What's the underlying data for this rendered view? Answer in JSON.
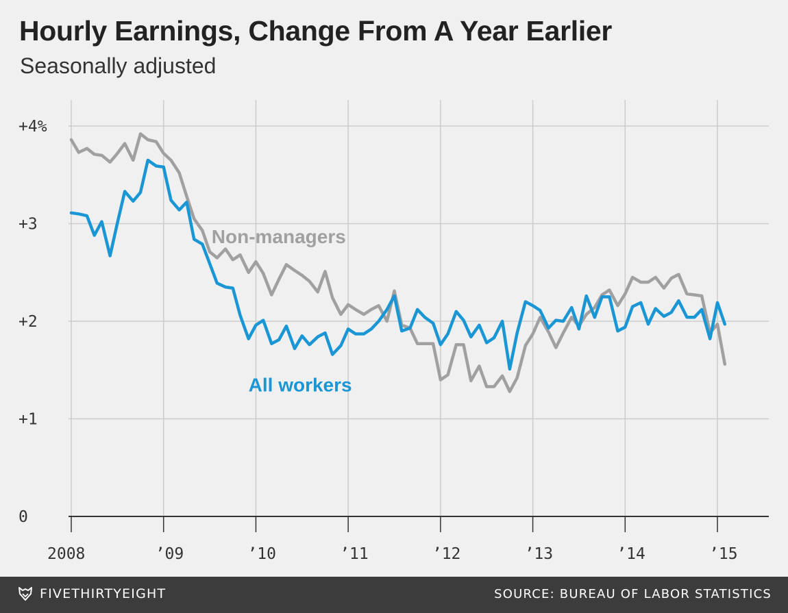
{
  "header": {
    "title": "Hourly Earnings, Change From A Year Earlier",
    "subtitle": "Seasonally adjusted"
  },
  "footer": {
    "brand": "FIVETHIRTYEIGHT",
    "source": "SOURCE: BUREAU OF LABOR STATISTICS"
  },
  "colors": {
    "background": "#f0f0f0",
    "grid": "#cccccc",
    "axis": "#333333",
    "all_workers": "#1a96d4",
    "non_managers": "#a0a0a0",
    "footer": "#3c3c3c"
  },
  "chart_data": {
    "type": "line",
    "title": "Hourly Earnings, Change From A Year Earlier",
    "subtitle": "Seasonally adjusted",
    "xlabel": "",
    "ylabel": "",
    "x_range": [
      2008.0,
      2015.5
    ],
    "ylim": [
      0,
      4.2
    ],
    "grid": true,
    "x_ticks": [
      {
        "value": 2008,
        "label": "2008"
      },
      {
        "value": 2009,
        "label": "’09"
      },
      {
        "value": 2010,
        "label": "’10"
      },
      {
        "value": 2011,
        "label": "’11"
      },
      {
        "value": 2012,
        "label": "’12"
      },
      {
        "value": 2013,
        "label": "’13"
      },
      {
        "value": 2014,
        "label": "’14"
      },
      {
        "value": 2015,
        "label": "’15"
      }
    ],
    "y_ticks": [
      {
        "value": 0,
        "label": "0"
      },
      {
        "value": 1,
        "label": "+1"
      },
      {
        "value": 2,
        "label": "+2"
      },
      {
        "value": 3,
        "label": "+3"
      },
      {
        "value": 4,
        "label": "+4%"
      }
    ],
    "series": [
      {
        "name": "Non-managers",
        "color": "#a0a0a0",
        "label_at": {
          "x": 2009.52,
          "y": 2.8
        },
        "points": [
          [
            2008.0,
            3.86
          ],
          [
            2008.08,
            3.73
          ],
          [
            2008.17,
            3.77
          ],
          [
            2008.25,
            3.71
          ],
          [
            2008.33,
            3.7
          ],
          [
            2008.42,
            3.63
          ],
          [
            2008.5,
            3.72
          ],
          [
            2008.58,
            3.82
          ],
          [
            2008.67,
            3.65
          ],
          [
            2008.75,
            3.92
          ],
          [
            2008.83,
            3.86
          ],
          [
            2008.92,
            3.84
          ],
          [
            2009.0,
            3.72
          ],
          [
            2009.08,
            3.65
          ],
          [
            2009.17,
            3.52
          ],
          [
            2009.25,
            3.28
          ],
          [
            2009.33,
            3.05
          ],
          [
            2009.42,
            2.93
          ],
          [
            2009.5,
            2.71
          ],
          [
            2009.58,
            2.65
          ],
          [
            2009.67,
            2.74
          ],
          [
            2009.75,
            2.63
          ],
          [
            2009.83,
            2.68
          ],
          [
            2009.92,
            2.5
          ],
          [
            2010.0,
            2.61
          ],
          [
            2010.08,
            2.49
          ],
          [
            2010.17,
            2.27
          ],
          [
            2010.25,
            2.43
          ],
          [
            2010.33,
            2.58
          ],
          [
            2010.42,
            2.52
          ],
          [
            2010.5,
            2.47
          ],
          [
            2010.58,
            2.41
          ],
          [
            2010.67,
            2.3
          ],
          [
            2010.75,
            2.51
          ],
          [
            2010.83,
            2.24
          ],
          [
            2010.92,
            2.07
          ],
          [
            2011.0,
            2.17
          ],
          [
            2011.08,
            2.12
          ],
          [
            2011.17,
            2.07
          ],
          [
            2011.25,
            2.12
          ],
          [
            2011.33,
            2.16
          ],
          [
            2011.42,
            2.0
          ],
          [
            2011.5,
            2.31
          ],
          [
            2011.58,
            1.96
          ],
          [
            2011.67,
            1.93
          ],
          [
            2011.75,
            1.77
          ],
          [
            2011.83,
            1.77
          ],
          [
            2011.92,
            1.77
          ],
          [
            2012.0,
            1.4
          ],
          [
            2012.08,
            1.45
          ],
          [
            2012.17,
            1.76
          ],
          [
            2012.25,
            1.76
          ],
          [
            2012.33,
            1.39
          ],
          [
            2012.42,
            1.54
          ],
          [
            2012.5,
            1.33
          ],
          [
            2012.58,
            1.33
          ],
          [
            2012.67,
            1.44
          ],
          [
            2012.75,
            1.28
          ],
          [
            2012.83,
            1.42
          ],
          [
            2012.92,
            1.75
          ],
          [
            2013.0,
            1.87
          ],
          [
            2013.08,
            2.04
          ],
          [
            2013.17,
            1.89
          ],
          [
            2013.25,
            1.73
          ],
          [
            2013.33,
            1.88
          ],
          [
            2013.42,
            2.04
          ],
          [
            2013.5,
            1.95
          ],
          [
            2013.58,
            2.07
          ],
          [
            2013.67,
            2.14
          ],
          [
            2013.75,
            2.27
          ],
          [
            2013.83,
            2.32
          ],
          [
            2013.92,
            2.16
          ],
          [
            2014.0,
            2.28
          ],
          [
            2014.08,
            2.45
          ],
          [
            2014.17,
            2.4
          ],
          [
            2014.25,
            2.4
          ],
          [
            2014.33,
            2.45
          ],
          [
            2014.42,
            2.34
          ],
          [
            2014.5,
            2.44
          ],
          [
            2014.58,
            2.48
          ],
          [
            2014.67,
            2.28
          ],
          [
            2014.75,
            2.27
          ],
          [
            2014.83,
            2.26
          ],
          [
            2014.92,
            1.88
          ],
          [
            2015.0,
            1.97
          ],
          [
            2015.08,
            1.56
          ]
        ]
      },
      {
        "name": "All workers",
        "color": "#1a96d4",
        "label_at": {
          "x": 2009.92,
          "y": 1.28
        },
        "points": [
          [
            2008.0,
            3.11
          ],
          [
            2008.08,
            3.1
          ],
          [
            2008.17,
            3.08
          ],
          [
            2008.25,
            2.88
          ],
          [
            2008.33,
            3.02
          ],
          [
            2008.42,
            2.67
          ],
          [
            2008.5,
            3.01
          ],
          [
            2008.58,
            3.33
          ],
          [
            2008.67,
            3.23
          ],
          [
            2008.75,
            3.32
          ],
          [
            2008.83,
            3.65
          ],
          [
            2008.92,
            3.59
          ],
          [
            2009.0,
            3.58
          ],
          [
            2009.08,
            3.24
          ],
          [
            2009.17,
            3.14
          ],
          [
            2009.25,
            3.22
          ],
          [
            2009.33,
            2.84
          ],
          [
            2009.42,
            2.79
          ],
          [
            2009.5,
            2.59
          ],
          [
            2009.58,
            2.39
          ],
          [
            2009.67,
            2.35
          ],
          [
            2009.75,
            2.34
          ],
          [
            2009.83,
            2.06
          ],
          [
            2009.92,
            1.82
          ],
          [
            2010.0,
            1.96
          ],
          [
            2010.08,
            2.01
          ],
          [
            2010.17,
            1.77
          ],
          [
            2010.25,
            1.81
          ],
          [
            2010.33,
            1.95
          ],
          [
            2010.42,
            1.72
          ],
          [
            2010.5,
            1.85
          ],
          [
            2010.58,
            1.76
          ],
          [
            2010.67,
            1.84
          ],
          [
            2010.75,
            1.88
          ],
          [
            2010.83,
            1.66
          ],
          [
            2010.92,
            1.75
          ],
          [
            2011.0,
            1.92
          ],
          [
            2011.08,
            1.87
          ],
          [
            2011.17,
            1.87
          ],
          [
            2011.25,
            1.92
          ],
          [
            2011.33,
            2.0
          ],
          [
            2011.42,
            2.12
          ],
          [
            2011.5,
            2.26
          ],
          [
            2011.58,
            1.9
          ],
          [
            2011.67,
            1.93
          ],
          [
            2011.75,
            2.12
          ],
          [
            2011.83,
            2.04
          ],
          [
            2011.92,
            1.98
          ],
          [
            2012.0,
            1.76
          ],
          [
            2012.08,
            1.87
          ],
          [
            2012.17,
            2.1
          ],
          [
            2012.25,
            2.01
          ],
          [
            2012.33,
            1.84
          ],
          [
            2012.42,
            1.96
          ],
          [
            2012.5,
            1.78
          ],
          [
            2012.58,
            1.83
          ],
          [
            2012.67,
            2.0
          ],
          [
            2012.75,
            1.51
          ],
          [
            2012.83,
            1.88
          ],
          [
            2012.92,
            2.2
          ],
          [
            2013.0,
            2.16
          ],
          [
            2013.08,
            2.11
          ],
          [
            2013.17,
            1.93
          ],
          [
            2013.25,
            2.01
          ],
          [
            2013.33,
            2.0
          ],
          [
            2013.42,
            2.14
          ],
          [
            2013.5,
            1.92
          ],
          [
            2013.58,
            2.26
          ],
          [
            2013.67,
            2.04
          ],
          [
            2013.75,
            2.25
          ],
          [
            2013.83,
            2.25
          ],
          [
            2013.92,
            1.9
          ],
          [
            2014.0,
            1.94
          ],
          [
            2014.08,
            2.15
          ],
          [
            2014.17,
            2.19
          ],
          [
            2014.25,
            1.97
          ],
          [
            2014.33,
            2.13
          ],
          [
            2014.42,
            2.05
          ],
          [
            2014.5,
            2.09
          ],
          [
            2014.58,
            2.21
          ],
          [
            2014.67,
            2.04
          ],
          [
            2014.75,
            2.04
          ],
          [
            2014.83,
            2.12
          ],
          [
            2014.92,
            1.82
          ],
          [
            2015.0,
            2.19
          ],
          [
            2015.08,
            1.97
          ]
        ]
      }
    ]
  }
}
